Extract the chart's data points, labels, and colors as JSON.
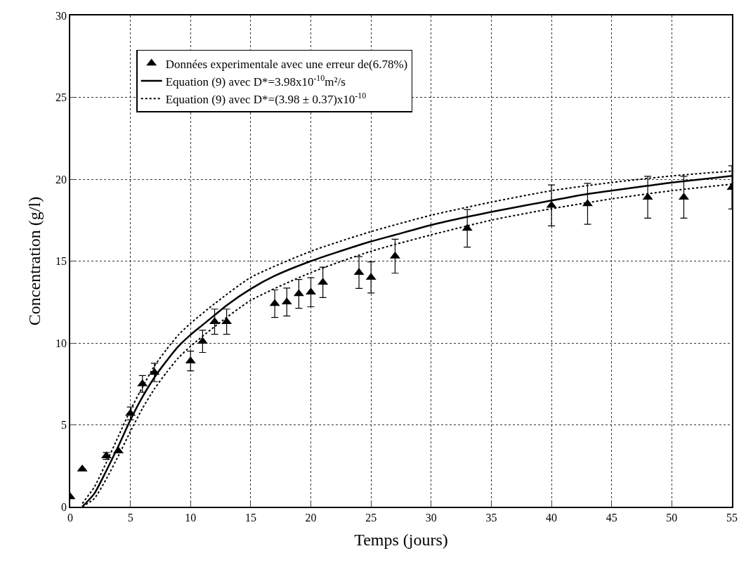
{
  "chart_data": {
    "type": "scatter",
    "xlabel": "Temps (jours)",
    "ylabel": "Concentration (g/l)",
    "xlim": [
      0,
      55
    ],
    "ylim": [
      0,
      30
    ],
    "xticks": [
      0,
      5,
      10,
      15,
      20,
      25,
      30,
      35,
      40,
      45,
      50,
      55
    ],
    "yticks": [
      0,
      5,
      10,
      15,
      20,
      25,
      30
    ],
    "grid": true,
    "legend": "top left",
    "series": [
      {
        "name": "Données experimentale avec une erreur de(6.78%)",
        "marker": "triangle",
        "color": "#000000",
        "x": [
          0,
          1,
          3,
          4,
          5,
          6,
          7,
          10,
          11,
          12,
          13,
          17,
          18,
          19,
          20,
          21,
          24,
          25,
          27,
          33,
          40,
          43,
          48,
          51,
          55
        ],
        "values": [
          0.6,
          2.3,
          3.1,
          3.4,
          5.7,
          7.5,
          8.2,
          8.9,
          10.1,
          11.3,
          11.3,
          12.4,
          12.5,
          13.0,
          13.1,
          13.7,
          14.3,
          14.0,
          15.3,
          17.0,
          18.4,
          18.5,
          18.9,
          18.9,
          19.5
        ],
        "errors": [
          null,
          null,
          0.21,
          null,
          0.39,
          0.51,
          0.56,
          0.6,
          0.68,
          0.77,
          0.77,
          0.84,
          0.85,
          0.88,
          0.89,
          0.93,
          0.97,
          0.95,
          1.04,
          1.15,
          1.25,
          1.25,
          1.28,
          1.28,
          1.32
        ]
      },
      {
        "name": "Equation (9) avec D*=3.98x10$^{-10}$m²/s",
        "type": "line",
        "line_style": "solid",
        "color": "#000000",
        "x": [
          1,
          2,
          3,
          4,
          5,
          6,
          7,
          8,
          9,
          10,
          11,
          12,
          13,
          15,
          17,
          20,
          22,
          25,
          27,
          30,
          33,
          35,
          40,
          43,
          45,
          48,
          50,
          55
        ],
        "values": [
          0,
          0.8,
          2.2,
          3.7,
          5.3,
          6.7,
          7.9,
          8.9,
          9.8,
          10.5,
          11.1,
          11.7,
          12.3,
          13.3,
          14.1,
          15.0,
          15.5,
          16.2,
          16.6,
          17.2,
          17.7,
          18.0,
          18.7,
          19.1,
          19.3,
          19.6,
          19.8,
          20.2
        ]
      },
      {
        "name": "Equation (9) avec D*=(3.98 ± 0.37)x10$^{-10}$",
        "type": "line",
        "line_style": "dotted",
        "color": "#000000",
        "x": [
          1,
          2,
          3,
          4,
          5,
          6,
          7,
          8,
          9,
          10,
          12,
          15,
          20,
          25,
          30,
          35,
          40,
          45,
          50,
          55
        ],
        "values": [
          0.2,
          1.2,
          2.7,
          4.3,
          5.9,
          7.3,
          8.6,
          9.6,
          10.5,
          11.2,
          12.4,
          14.0,
          15.6,
          16.8,
          17.8,
          18.6,
          19.3,
          19.8,
          20.2,
          20.5
        ]
      },
      {
        "type": "line",
        "line_style": "dotted",
        "color": "#000000",
        "x": [
          1,
          2,
          3,
          4,
          5,
          6,
          7,
          8,
          9,
          10,
          12,
          15,
          20,
          25,
          30,
          35,
          40,
          45,
          50,
          55
        ],
        "values": [
          0,
          0.5,
          1.7,
          3.1,
          4.6,
          6.0,
          7.2,
          8.2,
          9.1,
          9.8,
          11.0,
          12.6,
          14.3,
          15.6,
          16.6,
          17.5,
          18.2,
          18.8,
          19.3,
          19.7
        ]
      }
    ]
  }
}
